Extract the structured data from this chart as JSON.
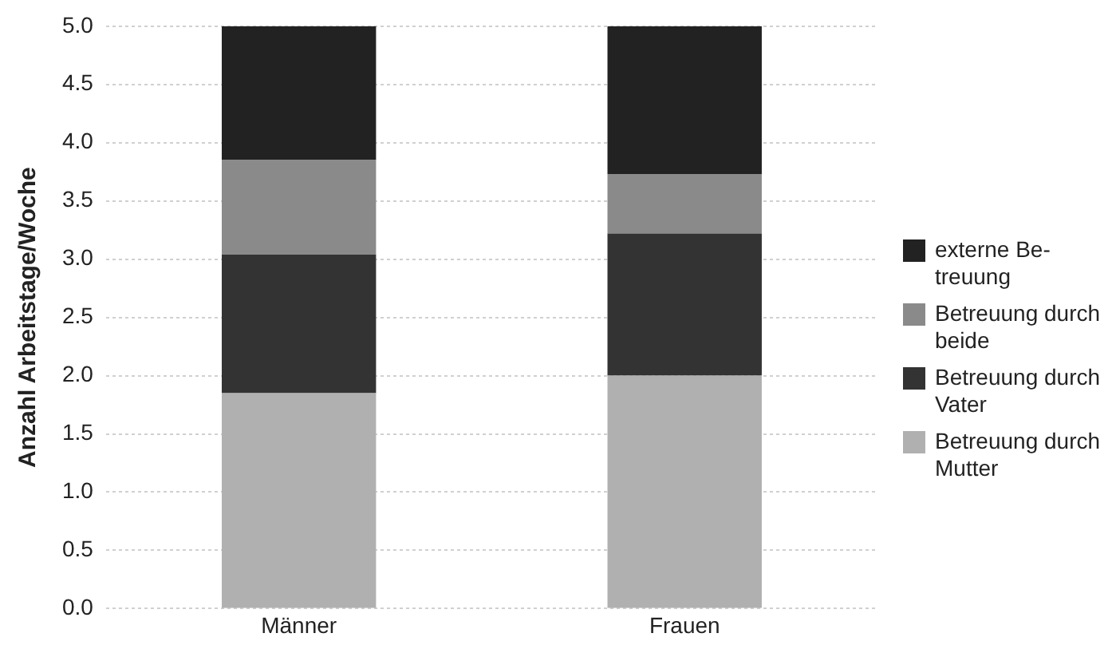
{
  "chart_data": {
    "type": "bar",
    "stacked": true,
    "ylabel": "Anzahl Arbeitstage/Woche",
    "categories": [
      "Männer",
      "Frauen"
    ],
    "series": [
      {
        "name": "Betreuung durch Mutter",
        "color": "#b0b0b0",
        "values": [
          1.85,
          2.0
        ]
      },
      {
        "name": "Betreuung durch Vater",
        "color": "#333333",
        "values": [
          1.19,
          1.22
        ]
      },
      {
        "name": "Betreuung durch beide",
        "color": "#8a8a8a",
        "values": [
          0.81,
          0.51
        ]
      },
      {
        "name": "externe Be-treuung",
        "color": "#222222",
        "values": [
          1.15,
          1.27
        ]
      }
    ],
    "ylim": [
      0,
      5
    ],
    "yticks": [
      {
        "value": 0,
        "label": "0.0"
      },
      0.5,
      {
        "value": 1,
        "label": "1.0"
      },
      1.5,
      {
        "value": 2,
        "label": "2.0"
      },
      2.5,
      {
        "value": 3,
        "label": "3.0"
      },
      3.5,
      {
        "value": 4,
        "label": "4.0"
      },
      4.5,
      {
        "value": 5,
        "label": "5.0"
      }
    ],
    "grid": "y",
    "legend": "right"
  }
}
